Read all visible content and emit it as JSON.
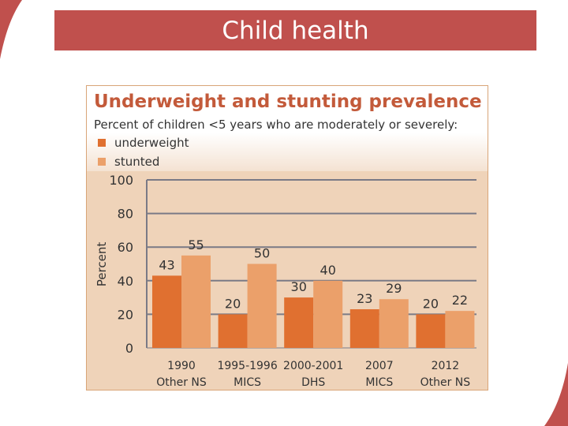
{
  "slide": {
    "title": "Child health"
  },
  "colors": {
    "title_bar": "#c0504d",
    "underweight": "#e07030",
    "stunted": "#eba06a",
    "chart_background": "#efd3b9",
    "chart_title": "#c35a3a"
  },
  "chart_data": {
    "type": "bar",
    "title": "Underweight and stunting prevalence",
    "subtitle": "Percent of children <5 years who are moderately or severely:",
    "ylabel": "Percent",
    "xlabel": "",
    "ylim": [
      0,
      100
    ],
    "yticks": [
      0,
      20,
      40,
      60,
      80,
      100
    ],
    "grid": true,
    "legend_position": "top-left",
    "categories": [
      [
        "1990",
        "Other NS"
      ],
      [
        "1995-1996",
        "MICS"
      ],
      [
        "2000-2001",
        "DHS"
      ],
      [
        "2007",
        "MICS"
      ],
      [
        "2012",
        "Other NS"
      ]
    ],
    "series": [
      {
        "name": "underweight",
        "values": [
          43,
          20,
          30,
          23,
          20
        ]
      },
      {
        "name": "stunted",
        "values": [
          55,
          50,
          40,
          29,
          22
        ]
      }
    ]
  }
}
